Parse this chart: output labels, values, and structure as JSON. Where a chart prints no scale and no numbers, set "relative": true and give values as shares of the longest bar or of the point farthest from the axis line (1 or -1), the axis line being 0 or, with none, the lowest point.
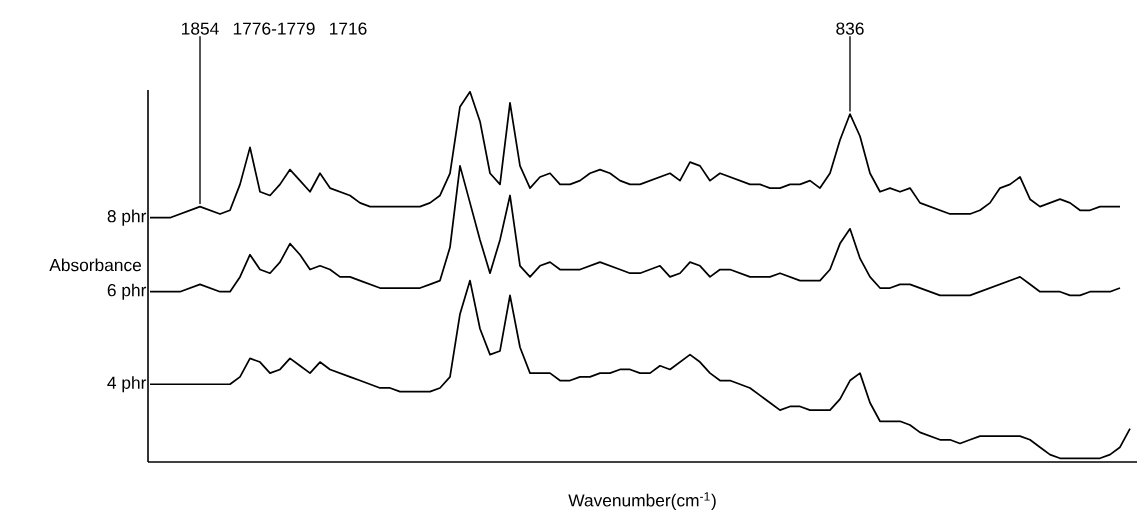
{
  "chart_data": {
    "type": "line",
    "relative": true,
    "xlabel": "Wavenumber(cm$^{-1}$)",
    "ylabel": "Absorbance",
    "categories": [
      null,
      null,
      null,
      null,
      null,
      null,
      null,
      null,
      null,
      null,
      null,
      null,
      null,
      null,
      null,
      null,
      null,
      null,
      null,
      null,
      null,
      null,
      null,
      null,
      null,
      null,
      null,
      null,
      null,
      null,
      null,
      null,
      null,
      null,
      null,
      null,
      null,
      null,
      null,
      null,
      null,
      null,
      null,
      null,
      null,
      null,
      null,
      null,
      null,
      null,
      null,
      null,
      null,
      null,
      null,
      null,
      null,
      null,
      null,
      null,
      null,
      null,
      null,
      null,
      null,
      null,
      null,
      null,
      null,
      null,
      null,
      null,
      null,
      null,
      null,
      null,
      null,
      null,
      null,
      null,
      null,
      null,
      null,
      null,
      null,
      null,
      null,
      null,
      null,
      null,
      null,
      null,
      null,
      null,
      null,
      null,
      null,
      null,
      null
    ],
    "series": [
      {
        "name": "8 phr",
        "color": "#000000",
        "values": [
          0.66,
          0.66,
          0.66,
          0.67,
          0.68,
          0.69,
          0.68,
          0.67,
          0.68,
          0.75,
          0.85,
          0.73,
          0.72,
          0.75,
          0.79,
          0.76,
          0.73,
          0.78,
          0.74,
          0.73,
          0.72,
          0.7,
          0.69,
          0.69,
          0.69,
          0.69,
          0.69,
          0.69,
          0.7,
          0.72,
          0.78,
          0.96,
          1,
          0.92,
          0.78,
          0.75,
          0.97,
          0.8,
          0.74,
          0.77,
          0.78,
          0.75,
          0.75,
          0.76,
          0.78,
          0.79,
          0.78,
          0.76,
          0.75,
          0.75,
          0.76,
          0.77,
          0.78,
          0.76,
          0.81,
          0.8,
          0.76,
          0.78,
          0.77,
          0.76,
          0.75,
          0.75,
          0.74,
          0.74,
          0.75,
          0.75,
          0.76,
          0.74,
          0.78,
          0.87,
          0.94,
          0.88,
          0.78,
          0.73,
          0.74,
          0.73,
          0.74,
          0.7,
          0.69,
          0.68,
          0.67,
          0.67,
          0.67,
          0.68,
          0.7,
          0.74,
          0.75,
          0.77,
          0.71,
          0.69,
          0.7,
          0.71,
          0.7,
          0.68,
          0.68,
          0.69,
          0.69,
          0.69,
          null
        ]
      },
      {
        "name": "6 phr",
        "color": "#000000",
        "values": [
          0.46,
          0.46,
          0.46,
          0.46,
          0.47,
          0.48,
          0.47,
          0.46,
          0.46,
          0.5,
          0.56,
          0.52,
          0.51,
          0.54,
          0.59,
          0.56,
          0.52,
          0.53,
          0.52,
          0.5,
          0.5,
          0.49,
          0.48,
          0.47,
          0.47,
          0.47,
          0.47,
          0.47,
          0.48,
          0.49,
          0.58,
          0.8,
          0.7,
          0.6,
          0.51,
          0.6,
          0.72,
          0.53,
          0.5,
          0.53,
          0.54,
          0.52,
          0.52,
          0.52,
          0.53,
          0.54,
          0.53,
          0.52,
          0.51,
          0.51,
          0.52,
          0.53,
          0.5,
          0.51,
          0.54,
          0.53,
          0.5,
          0.52,
          0.52,
          0.51,
          0.5,
          0.5,
          0.5,
          0.51,
          0.5,
          0.49,
          0.49,
          0.49,
          0.52,
          0.59,
          0.63,
          0.55,
          0.5,
          0.47,
          0.47,
          0.48,
          0.48,
          0.47,
          0.46,
          0.45,
          0.45,
          0.45,
          0.45,
          0.46,
          0.47,
          0.48,
          0.49,
          0.5,
          0.48,
          0.46,
          0.46,
          0.46,
          0.45,
          0.45,
          0.46,
          0.46,
          0.46,
          0.47,
          null
        ]
      },
      {
        "name": "4 phr",
        "color": "#000000",
        "values": [
          0.21,
          0.21,
          0.21,
          0.21,
          0.21,
          0.21,
          0.21,
          0.21,
          0.21,
          0.23,
          0.28,
          0.27,
          0.24,
          0.25,
          0.28,
          0.26,
          0.24,
          0.27,
          0.25,
          0.24,
          0.23,
          0.22,
          0.21,
          0.2,
          0.2,
          0.19,
          0.19,
          0.19,
          0.19,
          0.2,
          0.23,
          0.4,
          0.49,
          0.36,
          0.29,
          0.3,
          0.45,
          0.31,
          0.24,
          0.24,
          0.24,
          0.22,
          0.22,
          0.23,
          0.23,
          0.24,
          0.24,
          0.25,
          0.25,
          0.24,
          0.24,
          0.26,
          0.25,
          0.27,
          0.29,
          0.27,
          0.24,
          0.22,
          0.22,
          0.21,
          0.2,
          0.18,
          0.16,
          0.14,
          0.15,
          0.15,
          0.14,
          0.14,
          0.14,
          0.17,
          0.22,
          0.24,
          0.16,
          0.11,
          0.11,
          0.11,
          0.1,
          0.08,
          0.07,
          0.06,
          0.06,
          0.05,
          0.06,
          0.07,
          0.07,
          0.07,
          0.07,
          0.07,
          0.06,
          0.04,
          0.02,
          0.01,
          0.01,
          0.01,
          0.01,
          0.01,
          0.02,
          0.04,
          0.09
        ]
      }
    ],
    "annotations": [
      {
        "text": "1854",
        "y": 0.69
      },
      "1776-1779",
      "1716",
      {
        "text": "836",
        "y": 0.94
      }
    ]
  }
}
